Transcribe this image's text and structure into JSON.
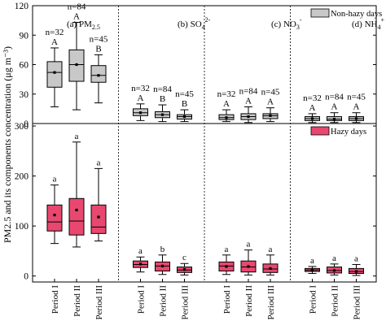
{
  "ylabel": "PM2.5 and its components concentration (μg m⁻³)",
  "periods": [
    "Period I",
    "Period II",
    "Period III"
  ],
  "legend_top": "Non-hazy days",
  "legend_bottom": "Hazy days",
  "colors": {
    "non_hazy": "#c8c8c8",
    "hazy": "#e8486f"
  },
  "chart_data": [
    {
      "type": "box",
      "title": "Non-hazy days",
      "ylim": [
        0,
        120
      ],
      "yticks": [
        "0",
        "30",
        "60",
        "90",
        "120"
      ],
      "panels": [
        {
          "label": "(a) PM",
          "sub": "2.5",
          "sup": "",
          "boxes": [
            {
              "n": "n=32",
              "letter": "A",
              "min": 17,
              "q1": 37,
              "median": 52,
              "q3": 63,
              "max": 77,
              "mean": 52
            },
            {
              "n": "n=84",
              "letter": "A",
              "min": 14,
              "q1": 43,
              "median": 60,
              "q3": 75,
              "max": 103,
              "mean": 60
            },
            {
              "n": "n=45",
              "letter": "B",
              "min": 21,
              "q1": 42,
              "median": 49,
              "q3": 59,
              "max": 70,
              "mean": 49
            }
          ]
        },
        {
          "label": "(b) SO",
          "sub": "4",
          "sup": "2-",
          "boxes": [
            {
              "n": "n=32",
              "letter": "A",
              "min": 3,
              "q1": 8,
              "median": 11,
              "q3": 15,
              "max": 20,
              "mean": 11
            },
            {
              "n": "n=84",
              "letter": "B",
              "min": 2,
              "q1": 6,
              "median": 9,
              "q3": 12,
              "max": 19,
              "mean": 9
            },
            {
              "n": "n=45",
              "letter": "B",
              "min": 2,
              "q1": 4.5,
              "median": 7,
              "q3": 9,
              "max": 14,
              "mean": 7
            }
          ]
        },
        {
          "label": "(c) NO",
          "sub": "3",
          "sup": "-",
          "boxes": [
            {
              "n": "n=32",
              "letter": "A",
              "min": 2,
              "q1": 4,
              "median": 6,
              "q3": 9,
              "max": 14,
              "mean": 6
            },
            {
              "n": "n=84",
              "letter": "A",
              "min": 1,
              "q1": 4,
              "median": 7,
              "q3": 10,
              "max": 17,
              "mean": 7
            },
            {
              "n": "n=45",
              "letter": "A",
              "min": 2,
              "q1": 5,
              "median": 8,
              "q3": 10,
              "max": 16,
              "mean": 8
            }
          ]
        },
        {
          "label": "(d) NH",
          "sub": "4",
          "sup": "+",
          "boxes": [
            {
              "n": "n=32",
              "letter": "A",
              "min": 1,
              "q1": 3,
              "median": 5,
              "q3": 7,
              "max": 10,
              "mean": 5
            },
            {
              "n": "n=84",
              "letter": "A",
              "min": 1,
              "q1": 3,
              "median": 4.5,
              "q3": 7,
              "max": 11,
              "mean": 4.5
            },
            {
              "n": "n=45",
              "letter": "A",
              "min": 1,
              "q1": 3,
              "median": 5,
              "q3": 7,
              "max": 11,
              "mean": 5
            }
          ]
        }
      ]
    },
    {
      "type": "box",
      "title": "Hazy days",
      "ylim": [
        -12,
        305
      ],
      "yticks": [
        "0",
        "100",
        "200",
        "300"
      ],
      "panels": [
        {
          "boxes": [
            {
              "letter": "a",
              "min": 65,
              "q1": 90,
              "median": 108,
              "q3": 142,
              "max": 182,
              "mean": 122
            },
            {
              "letter": "a",
              "min": 58,
              "q1": 82,
              "median": 110,
              "q3": 155,
              "max": 268,
              "mean": 132
            },
            {
              "letter": "a",
              "min": 70,
              "q1": 85,
              "median": 98,
              "q3": 142,
              "max": 215,
              "mean": 118
            }
          ]
        },
        {
          "boxes": [
            {
              "letter": "a",
              "min": 8,
              "q1": 17,
              "median": 23,
              "q3": 30,
              "max": 38,
              "mean": 24
            },
            {
              "letter": "b",
              "min": 3,
              "q1": 10,
              "median": 20,
              "q3": 28,
              "max": 42,
              "mean": 20
            },
            {
              "letter": "c",
              "min": 2,
              "q1": 7,
              "median": 12,
              "q3": 18,
              "max": 25,
              "mean": 13
            }
          ]
        },
        {
          "boxes": [
            {
              "letter": "a",
              "min": 3,
              "q1": 10,
              "median": 20,
              "q3": 28,
              "max": 42,
              "mean": 19
            },
            {
              "letter": "a",
              "min": 2,
              "q1": 8,
              "median": 18,
              "q3": 30,
              "max": 52,
              "mean": 19
            },
            {
              "letter": "a",
              "min": 2,
              "q1": 7,
              "median": 14,
              "q3": 24,
              "max": 42,
              "mean": 15
            }
          ]
        },
        {
          "boxes": [
            {
              "letter": "a",
              "min": 5,
              "q1": 9,
              "median": 12,
              "q3": 15,
              "max": 19,
              "mean": 12
            },
            {
              "letter": "a",
              "min": 2,
              "q1": 6,
              "median": 11,
              "q3": 18,
              "max": 24,
              "mean": 11
            },
            {
              "letter": "a",
              "min": 1,
              "q1": 5,
              "median": 9,
              "q3": 15,
              "max": 23,
              "mean": 9
            }
          ]
        }
      ]
    }
  ]
}
